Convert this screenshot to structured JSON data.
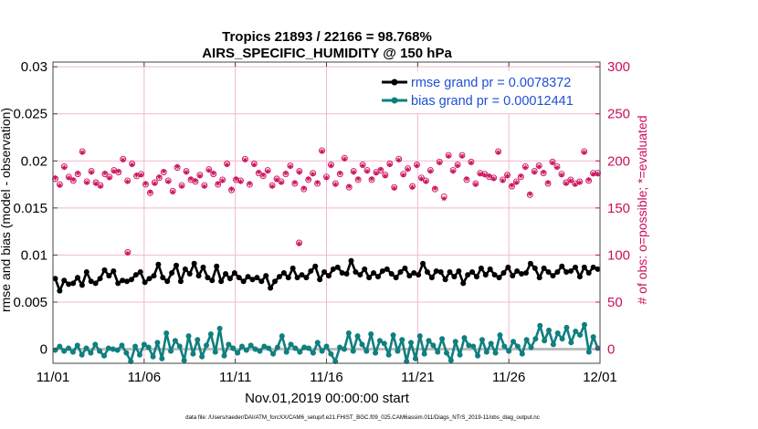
{
  "chart_data": {
    "type": "line",
    "title_line1": "Tropics 21893 / 22166 = 98.768%",
    "title_line2": "AIRS_SPECIFIC_HUMIDITY @ 150 hPa",
    "xlabel": "Nov.01,2019 00:00:00 start",
    "ylabel_left": "rmse and bias (model - observation)",
    "ylabel_right": "# of obs: o=possible; *=evaluated",
    "footer": "data file: /Users/raeder/DAI/ATM_forcXX/CAM6_setup/f.e21.FHIST_BGC.f09_025.CAM6assim.011/Diags_NTrS_2019-11/obs_diag_output.nc",
    "xlim": [
      0,
      30
    ],
    "ylim_left": [
      -0.0015,
      0.0305
    ],
    "ylim_right": [
      -15,
      305
    ],
    "x_ticks": [
      0,
      5,
      10,
      15,
      20,
      25,
      30
    ],
    "x_tick_labels": [
      "11/01",
      "11/06",
      "11/11",
      "11/16",
      "11/21",
      "11/26",
      "12/01"
    ],
    "y_left_ticks": [
      0,
      0.005,
      0.01,
      0.015,
      0.02,
      0.025,
      0.03
    ],
    "y_left_tick_labels": [
      "0",
      "0.005",
      "0.01",
      "0.015",
      "0.02",
      "0.025",
      "0.03"
    ],
    "y_right_ticks": [
      0,
      50,
      100,
      150,
      200,
      250,
      300
    ],
    "y_right_tick_labels": [
      "0",
      "50",
      "100",
      "150",
      "200",
      "250",
      "300"
    ],
    "legend": {
      "position": "top-right",
      "entries": [
        "rmse grand pr = 0.0078372",
        "bias grand pr = 0.00012441"
      ]
    },
    "colors": {
      "rmse": "#000000",
      "bias": "#0f7f7f",
      "counts": "#cc0e5a",
      "grid": "#f1b8cc",
      "zero": "#bdbdbd"
    },
    "series": [
      {
        "name": "rmse",
        "values": [
          0.0075,
          0.0062,
          0.0073,
          0.0069,
          0.007,
          0.0076,
          0.0068,
          0.0082,
          0.0072,
          0.007,
          0.0075,
          0.0084,
          0.0078,
          0.0083,
          0.007,
          0.0073,
          0.0072,
          0.0074,
          0.0079,
          0.0082,
          0.0071,
          0.0075,
          0.0078,
          0.009,
          0.0076,
          0.0072,
          0.0081,
          0.0089,
          0.0072,
          0.0085,
          0.008,
          0.0091,
          0.0078,
          0.0087,
          0.0076,
          0.0073,
          0.0088,
          0.0072,
          0.008,
          0.0075,
          0.0081,
          0.0076,
          0.0072,
          0.0077,
          0.0074,
          0.0076,
          0.0072,
          0.0078,
          0.0065,
          0.0072,
          0.0077,
          0.0081,
          0.0076,
          0.0086,
          0.0076,
          0.0079,
          0.0076,
          0.0083,
          0.0088,
          0.0074,
          0.0082,
          0.0078,
          0.0085,
          0.0087,
          0.0081,
          0.008,
          0.0094,
          0.0082,
          0.0079,
          0.0085,
          0.0076,
          0.0081,
          0.0077,
          0.0083,
          0.0085,
          0.008,
          0.0076,
          0.0082,
          0.0086,
          0.0078,
          0.0081,
          0.0079,
          0.0091,
          0.0082,
          0.0076,
          0.0083,
          0.0082,
          0.0074,
          0.0082,
          0.0077,
          0.0083,
          0.007,
          0.0079,
          0.0082,
          0.0077,
          0.0086,
          0.0079,
          0.0085,
          0.0079,
          0.0076,
          0.0081,
          0.0087,
          0.0078,
          0.0083,
          0.008,
          0.0081,
          0.0091,
          0.0086,
          0.0076,
          0.0086,
          0.0082,
          0.0078,
          0.0082,
          0.0088,
          0.0082,
          0.0083,
          0.0087,
          0.0077,
          0.0087,
          0.0081,
          0.0087,
          0.0085
        ]
      },
      {
        "name": "bias",
        "values": [
          -0.0001,
          0.0003,
          -0.0002,
          0.0001,
          -0.0003,
          0.0004,
          -0.0006,
          0.0001,
          -0.0004,
          0.0005,
          -0.0002,
          -0.0007,
          0.0001,
          0.0,
          -0.0001,
          0.0004,
          -0.0004,
          -0.0013,
          0.0003,
          -0.0006,
          0.0005,
          0.0002,
          -0.0008,
          0.0007,
          -0.001,
          0.0017,
          -0.0002,
          0.0009,
          0.0003,
          -0.0012,
          0.0014,
          -0.0005,
          0.001,
          -0.0008,
          0.0004,
          0.0016,
          -0.0003,
          0.0022,
          -0.0007,
          0.0005,
          0.0001,
          -0.0004,
          0.0003,
          -0.0001,
          0.0004,
          0.0,
          -0.0002,
          0.0003,
          0.0001,
          -0.0005,
          0.0002,
          0.0014,
          -0.0003,
          0.0005,
          0.0001,
          -0.0003,
          0.0002,
          0.0001,
          -0.0004,
          0.0007,
          -0.0002,
          0.0003,
          -0.0005,
          -0.0013,
          0.0002,
          0.0,
          0.0017,
          -0.0002,
          0.0014,
          0.0005,
          -0.0002,
          0.0016,
          -0.0004,
          0.0009,
          0.0006,
          -0.0006,
          0.0015,
          -0.0002,
          0.001,
          -0.0013,
          0.0007,
          -0.001,
          0.0014,
          -0.0005,
          0.0009,
          0.0004,
          -0.0003,
          0.0011,
          -0.0004,
          -0.0012,
          0.0008,
          -0.0006,
          0.0012,
          0.0004,
          0.0003,
          -0.0007,
          0.001,
          -0.0003,
          0.0006,
          -0.0004,
          0.0015,
          0.0003,
          -0.0002,
          0.0008,
          0.0003,
          -0.0005,
          0.001,
          0.0002,
          0.0011,
          0.0025,
          0.0009,
          0.002,
          0.0005,
          0.0017,
          0.0011,
          0.0023,
          0.0007,
          0.0019,
          0.0015,
          0.0026,
          -0.0003,
          0.0013,
          0.0001
        ]
      },
      {
        "name": "obs_possible",
        "values": [
          181,
          175,
          194,
          183,
          179,
          186,
          210,
          178,
          189,
          177,
          174,
          186,
          183,
          190,
          188,
          202,
          179,
          197,
          184,
          186,
          175,
          166,
          177,
          182,
          188,
          179,
          168,
          193,
          174,
          189,
          180,
          178,
          185,
          174,
          191,
          186,
          175,
          180,
          197,
          169,
          180,
          179,
          202,
          175,
          197,
          187,
          184,
          190,
          174,
          181,
          178,
          186,
          195,
          176,
          189,
          170,
          180,
          187,
          176,
          211,
          183,
          196,
          176,
          186,
          203,
          172,
          189,
          180,
          196,
          190,
          180,
          188,
          190,
          185,
          197,
          172,
          202,
          186,
          192,
          173,
          196,
          182,
          179,
          190,
          170,
          199,
          162,
          206,
          190,
          196,
          206,
          180,
          199,
          176,
          187,
          186,
          183,
          182,
          210,
          180,
          185,
          173,
          178,
          183,
          194,
          164,
          189,
          195,
          187,
          176,
          199,
          194,
          186,
          177,
          180,
          176,
          178,
          210,
          179,
          187,
          187
        ]
      },
      {
        "name": "obs_evaluated",
        "values": [
          182,
          174,
          193,
          182,
          180,
          187,
          209,
          177,
          188,
          176,
          173,
          187,
          182,
          189,
          189,
          201,
          178,
          196,
          185,
          185,
          176,
          167,
          176,
          183,
          189,
          178,
          167,
          194,
          173,
          188,
          181,
          179,
          184,
          173,
          190,
          187,
          176,
          179,
          196,
          170,
          181,
          178,
          201,
          176,
          196,
          188,
          185,
          189,
          173,
          180,
          177,
          187,
          194,
          177,
          188,
          171,
          181,
          186,
          177,
          210,
          182,
          195,
          175,
          187,
          202,
          173,
          188,
          181,
          195,
          189,
          181,
          187,
          191,
          184,
          196,
          171,
          201,
          185,
          191,
          172,
          195,
          181,
          178,
          189,
          171,
          198,
          160,
          205,
          189,
          195,
          205,
          181,
          198,
          175,
          186,
          185,
          184,
          181,
          209,
          179,
          184,
          174,
          177,
          184,
          193,
          165,
          188,
          194,
          188,
          177,
          198,
          193,
          185,
          176,
          179,
          175,
          177,
          209,
          180,
          186,
          186
        ]
      }
    ],
    "outliers_possible": [
      {
        "x": 13.5,
        "y": 113
      },
      {
        "x": 4.1,
        "y": 103
      }
    ],
    "outliers_evaluated": [
      {
        "x": 13.5,
        "y": 112
      },
      {
        "x": 4.1,
        "y": 102
      }
    ]
  }
}
